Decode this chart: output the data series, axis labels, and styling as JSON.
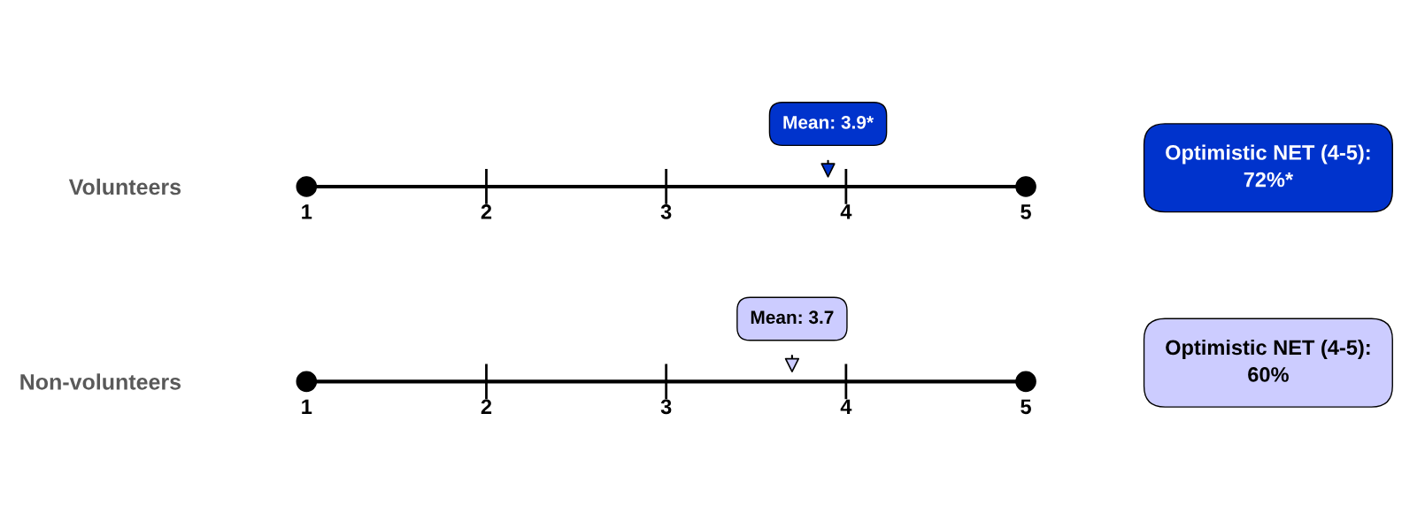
{
  "chart_data": [
    {
      "type": "scatter",
      "orientation": "horizontal",
      "categories": [
        "Volunteers"
      ],
      "xlim": [
        1,
        5
      ],
      "xticks": [
        1,
        2,
        3,
        4,
        5
      ],
      "values": [
        3.9
      ],
      "value_labels": [
        "Mean: 3.9*"
      ],
      "color": "#0033cc",
      "marker": "triangle",
      "annotations": [
        "Optimistic NET (4-5):\n72%*"
      ]
    },
    {
      "type": "scatter",
      "orientation": "horizontal",
      "categories": [
        "Non-volunteers"
      ],
      "xlim": [
        1,
        5
      ],
      "xticks": [
        1,
        2,
        3,
        4,
        5
      ],
      "values": [
        3.7
      ],
      "value_labels": [
        "Mean: 3.7"
      ],
      "color": "#ccccff",
      "marker": "triangle",
      "annotations": [
        "Optimistic NET (4-5):\n60%"
      ]
    }
  ]
}
